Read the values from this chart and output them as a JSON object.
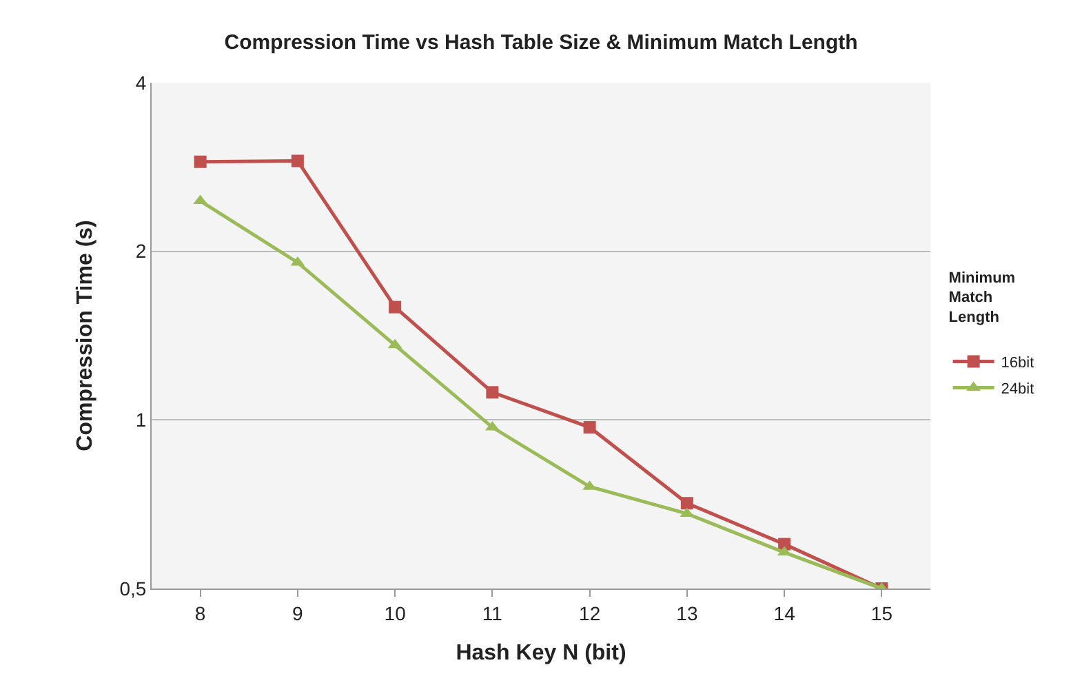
{
  "chart_data": {
    "type": "line",
    "title": "Compression Time vs Hash Table Size & Minimum Match Length",
    "xlabel": "Hash Key N (bit)",
    "ylabel": "Compression Time (s)",
    "legend_title": "Minimum Match Length",
    "categories": [
      "8",
      "9",
      "10",
      "11",
      "12",
      "13",
      "14",
      "15"
    ],
    "series": [
      {
        "name": "16bit",
        "color": "#c0504d",
        "marker": "square",
        "values": [
          2.89,
          2.9,
          1.59,
          1.12,
          0.97,
          0.71,
          0.6,
          0.5
        ]
      },
      {
        "name": "24bit",
        "color": "#9bbb59",
        "marker": "triangle",
        "values": [
          2.46,
          1.91,
          1.36,
          0.97,
          0.76,
          0.68,
          0.58,
          0.5
        ]
      }
    ],
    "log": "y",
    "ylim": [
      0.5,
      4
    ],
    "yticks": [
      {
        "value": 0.5,
        "label": "0,5"
      },
      1,
      2,
      4
    ],
    "grid": "y",
    "legend": "right",
    "line_style": "solid"
  }
}
